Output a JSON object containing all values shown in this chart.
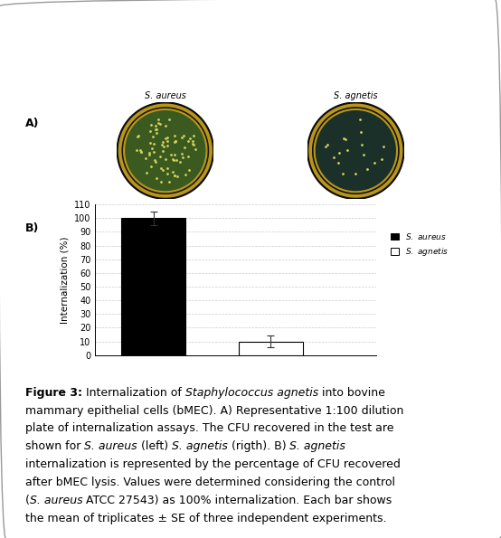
{
  "bar_values": [
    100,
    10
  ],
  "bar_errors": [
    5,
    4
  ],
  "bar_colors": [
    "#000000",
    "#ffffff"
  ],
  "bar_edge_colors": [
    "#000000",
    "#000000"
  ],
  "ylabel": "Internalization (%)",
  "ylim": [
    0,
    110
  ],
  "yticks": [
    0,
    10,
    20,
    30,
    40,
    50,
    60,
    70,
    80,
    90,
    100,
    110
  ],
  "legend_labels": [
    "S. aureus",
    "S. agnetis"
  ],
  "legend_colors": [
    "#000000",
    "#ffffff"
  ],
  "panel_a_label": "A)",
  "panel_b_label": "B)",
  "img1_label": "S. aureus",
  "img2_label": "S. agnetis",
  "background_color": "#ffffff",
  "grid_color": "#cccccc",
  "bar_width": 0.55,
  "fontsize_legend": 6.5,
  "fontsize_axis_label": 7.5,
  "fontsize_ticks": 7,
  "fontsize_panel": 9,
  "fontsize_caption": 9,
  "plate1_bg": "#0a0a0a",
  "plate1_center": "#3a5a20",
  "plate1_rim": "#b8961e",
  "plate2_bg": "#0a0a0a",
  "plate2_center": "#1a3028",
  "plate2_rim": "#b8961e",
  "colony_color": "#d8d060",
  "n_colonies1": 75,
  "n_colonies2": 18
}
